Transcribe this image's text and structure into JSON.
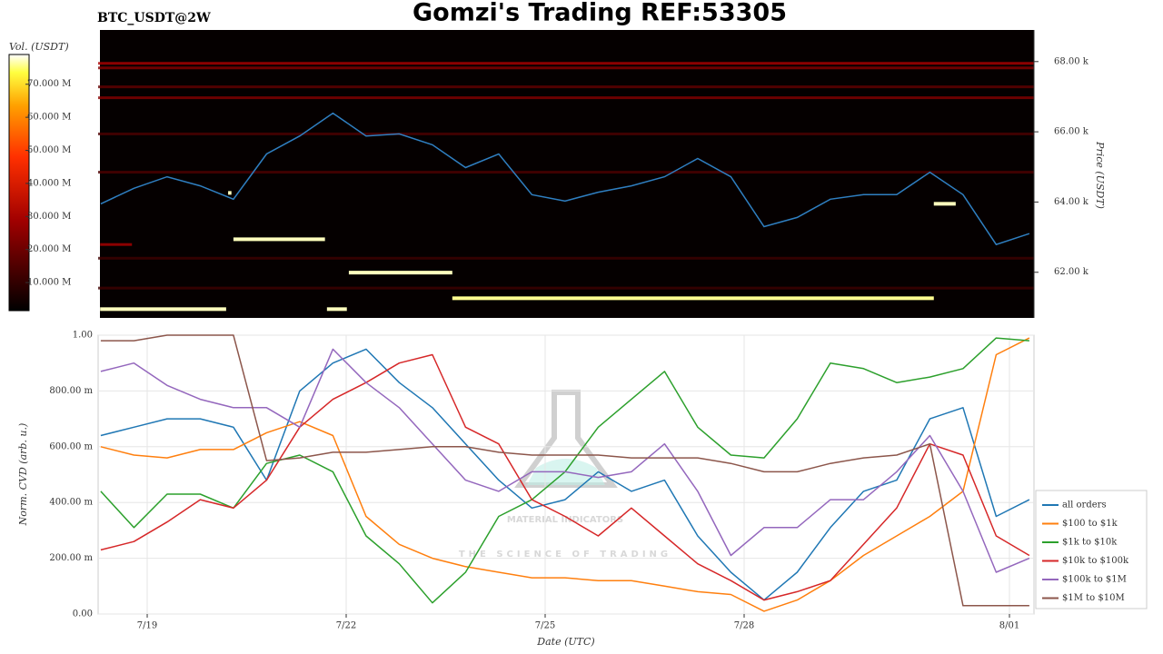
{
  "chart_data": [
    {
      "type": "heatmap",
      "title": "Gomzi's Trading REF:53305",
      "subtitle": "BTC_USDT@2W",
      "y_label": "Price (USDT)",
      "ylim": [
        60700,
        68900
      ],
      "yticks": [
        {
          "value": 62000,
          "label": "62.00 k"
        },
        {
          "value": 64000,
          "label": "64.00 k"
        },
        {
          "value": 66000,
          "label": "66.00 k"
        },
        {
          "value": 68000,
          "label": "68.00 k"
        }
      ],
      "xlim": [
        18.26,
        32.37
      ],
      "colorbar": {
        "label": "Vol. (USDT)",
        "lim": [
          1500000,
          79000000
        ],
        "ticks": [
          {
            "value": 10000000,
            "label": "10.000 M"
          },
          {
            "value": 20000000,
            "label": "20.000 M"
          },
          {
            "value": 30000000,
            "label": "30.000 M"
          },
          {
            "value": 40000000,
            "label": "40.000 M"
          },
          {
            "value": 50000000,
            "label": "50.000 M"
          },
          {
            "value": 60000000,
            "label": "60.000 M"
          },
          {
            "value": 70000000,
            "label": "70.000 M"
          }
        ]
      },
      "levels": [
        {
          "price": 67950,
          "volume": 25000000,
          "x": [
            18.26,
            32.37
          ]
        },
        {
          "price": 67820,
          "volume": 20000000,
          "x": [
            18.26,
            32.37
          ]
        },
        {
          "price": 67280,
          "volume": 15000000,
          "x": [
            18.26,
            32.37
          ]
        },
        {
          "price": 66970,
          "volume": 20000000,
          "x": [
            18.26,
            32.37
          ]
        },
        {
          "price": 65940,
          "volume": 12000000,
          "x": [
            18.26,
            32.37
          ]
        },
        {
          "price": 64850,
          "volume": 12000000,
          "x": [
            18.26,
            32.37
          ]
        },
        {
          "price": 62400,
          "volume": 10000000,
          "x": [
            18.26,
            32.37
          ]
        },
        {
          "price": 61550,
          "volume": 10000000,
          "x": [
            18.26,
            32.37
          ]
        },
        {
          "price": 62790,
          "volume": 25000000,
          "x": [
            18.29,
            18.77
          ]
        },
        {
          "price": 62940,
          "volume": 76000000,
          "x": [
            20.3,
            21.68
          ]
        },
        {
          "price": 61990,
          "volume": 76000000,
          "x": [
            22.04,
            23.6
          ]
        },
        {
          "price": 61260,
          "volume": 74000000,
          "x": [
            23.6,
            30.86
          ]
        },
        {
          "price": 60950,
          "volume": 76000000,
          "x": [
            18.29,
            20.19
          ]
        },
        {
          "price": 60950,
          "volume": 76000000,
          "x": [
            21.71,
            22.01
          ]
        },
        {
          "price": 63950,
          "volume": 76000000,
          "x": [
            30.86,
            31.19
          ]
        },
        {
          "price": 64260,
          "volume": 76000000,
          "x": [
            20.22,
            20.27
          ]
        }
      ],
      "x": [
        18.3,
        18.8,
        19.3,
        19.8,
        20.3,
        20.8,
        21.3,
        21.8,
        22.3,
        22.8,
        23.3,
        23.8,
        24.3,
        24.8,
        25.3,
        25.8,
        26.3,
        26.8,
        27.3,
        27.8,
        28.3,
        28.8,
        29.3,
        29.8,
        30.3,
        30.8,
        31.3,
        31.8,
        32.3
      ],
      "price": [
        63950,
        64390,
        64720,
        64460,
        64080,
        65370,
        65880,
        66530,
        65880,
        65940,
        65630,
        64980,
        65370,
        64210,
        64030,
        64280,
        64460,
        64720,
        65240,
        64720,
        63300,
        63560,
        64080,
        64210,
        64210,
        64850,
        64210,
        62790,
        63100
      ],
      "price_color": "#2f7fc1"
    },
    {
      "type": "line",
      "x_label": "Date (UTC)",
      "y_label": "Norm. CVD (arb. u.)",
      "xlim": [
        18.26,
        32.37
      ],
      "xticks": [
        {
          "value": 19,
          "label": "7/19"
        },
        {
          "value": 22,
          "label": "7/22"
        },
        {
          "value": 25,
          "label": "7/25"
        },
        {
          "value": 28,
          "label": "7/28"
        },
        {
          "value": 32,
          "label": "8/01"
        }
      ],
      "ylim": [
        0,
        1
      ],
      "yticks": [
        {
          "value": 0,
          "label": "0.00"
        },
        {
          "value": 0.2,
          "label": "200.00 m"
        },
        {
          "value": 0.4,
          "label": "400.00 m"
        },
        {
          "value": 0.6,
          "label": "600.00 m"
        },
        {
          "value": 0.8,
          "label": "800.00 m"
        },
        {
          "value": 1,
          "label": "1.00"
        }
      ],
      "grid": true,
      "legend": "right",
      "x": [
        18.3,
        18.8,
        19.3,
        19.8,
        20.3,
        20.8,
        21.3,
        21.8,
        22.3,
        22.8,
        23.3,
        23.8,
        24.3,
        24.8,
        25.3,
        25.8,
        26.3,
        26.8,
        27.3,
        27.8,
        28.3,
        28.8,
        29.3,
        29.8,
        30.3,
        30.8,
        31.3,
        31.8,
        32.3
      ],
      "series": [
        {
          "name": "all orders",
          "color": "#1f77b4",
          "values": [
            0.64,
            0.67,
            0.7,
            0.7,
            0.67,
            0.48,
            0.8,
            0.9,
            0.95,
            0.83,
            0.74,
            0.61,
            0.48,
            0.38,
            0.41,
            0.51,
            0.44,
            0.48,
            0.28,
            0.15,
            0.05,
            0.15,
            0.31,
            0.44,
            0.48,
            0.7,
            0.74,
            0.35,
            0.41
          ]
        },
        {
          "name": "$100 to $1k",
          "color": "#ff7f0e",
          "values": [
            0.6,
            0.57,
            0.56,
            0.59,
            0.59,
            0.65,
            0.69,
            0.64,
            0.35,
            0.25,
            0.2,
            0.17,
            0.15,
            0.13,
            0.13,
            0.12,
            0.12,
            0.1,
            0.08,
            0.07,
            0.01,
            0.05,
            0.12,
            0.21,
            0.28,
            0.35,
            0.44,
            0.93,
            0.99
          ]
        },
        {
          "name": "$1k to $10k",
          "color": "#2ca02c",
          "values": [
            0.44,
            0.31,
            0.43,
            0.43,
            0.38,
            0.54,
            0.57,
            0.51,
            0.28,
            0.18,
            0.04,
            0.15,
            0.35,
            0.41,
            0.51,
            0.67,
            0.77,
            0.87,
            0.67,
            0.57,
            0.56,
            0.7,
            0.9,
            0.88,
            0.83,
            0.85,
            0.88,
            0.99,
            0.98
          ]
        },
        {
          "name": "$10k to $100k",
          "color": "#d62728",
          "values": [
            0.23,
            0.26,
            0.33,
            0.41,
            0.38,
            0.48,
            0.67,
            0.77,
            0.83,
            0.9,
            0.93,
            0.67,
            0.61,
            0.41,
            0.35,
            0.28,
            0.38,
            0.28,
            0.18,
            0.12,
            0.05,
            0.08,
            0.12,
            0.25,
            0.38,
            0.61,
            0.57,
            0.28,
            0.21
          ]
        },
        {
          "name": "$100k to $1M",
          "color": "#9467bd",
          "values": [
            0.87,
            0.9,
            0.82,
            0.77,
            0.74,
            0.74,
            0.67,
            0.95,
            0.83,
            0.74,
            0.61,
            0.48,
            0.44,
            0.51,
            0.51,
            0.49,
            0.51,
            0.61,
            0.44,
            0.21,
            0.31,
            0.31,
            0.41,
            0.41,
            0.51,
            0.64,
            0.44,
            0.15,
            0.2
          ]
        },
        {
          "name": "$1M to $10M",
          "color": "#8c564b",
          "values": [
            0.98,
            0.98,
            1.0,
            1.0,
            1.0,
            0.55,
            0.56,
            0.58,
            0.58,
            0.59,
            0.6,
            0.6,
            0.58,
            0.57,
            0.57,
            0.57,
            0.56,
            0.56,
            0.56,
            0.54,
            0.51,
            0.51,
            0.54,
            0.56,
            0.57,
            0.61,
            0.03,
            0.03,
            0.03
          ]
        }
      ]
    }
  ],
  "watermark": {
    "brand": "MATERIAL INDICATORS",
    "tagline": "THE SCIENCE OF TRADING"
  }
}
